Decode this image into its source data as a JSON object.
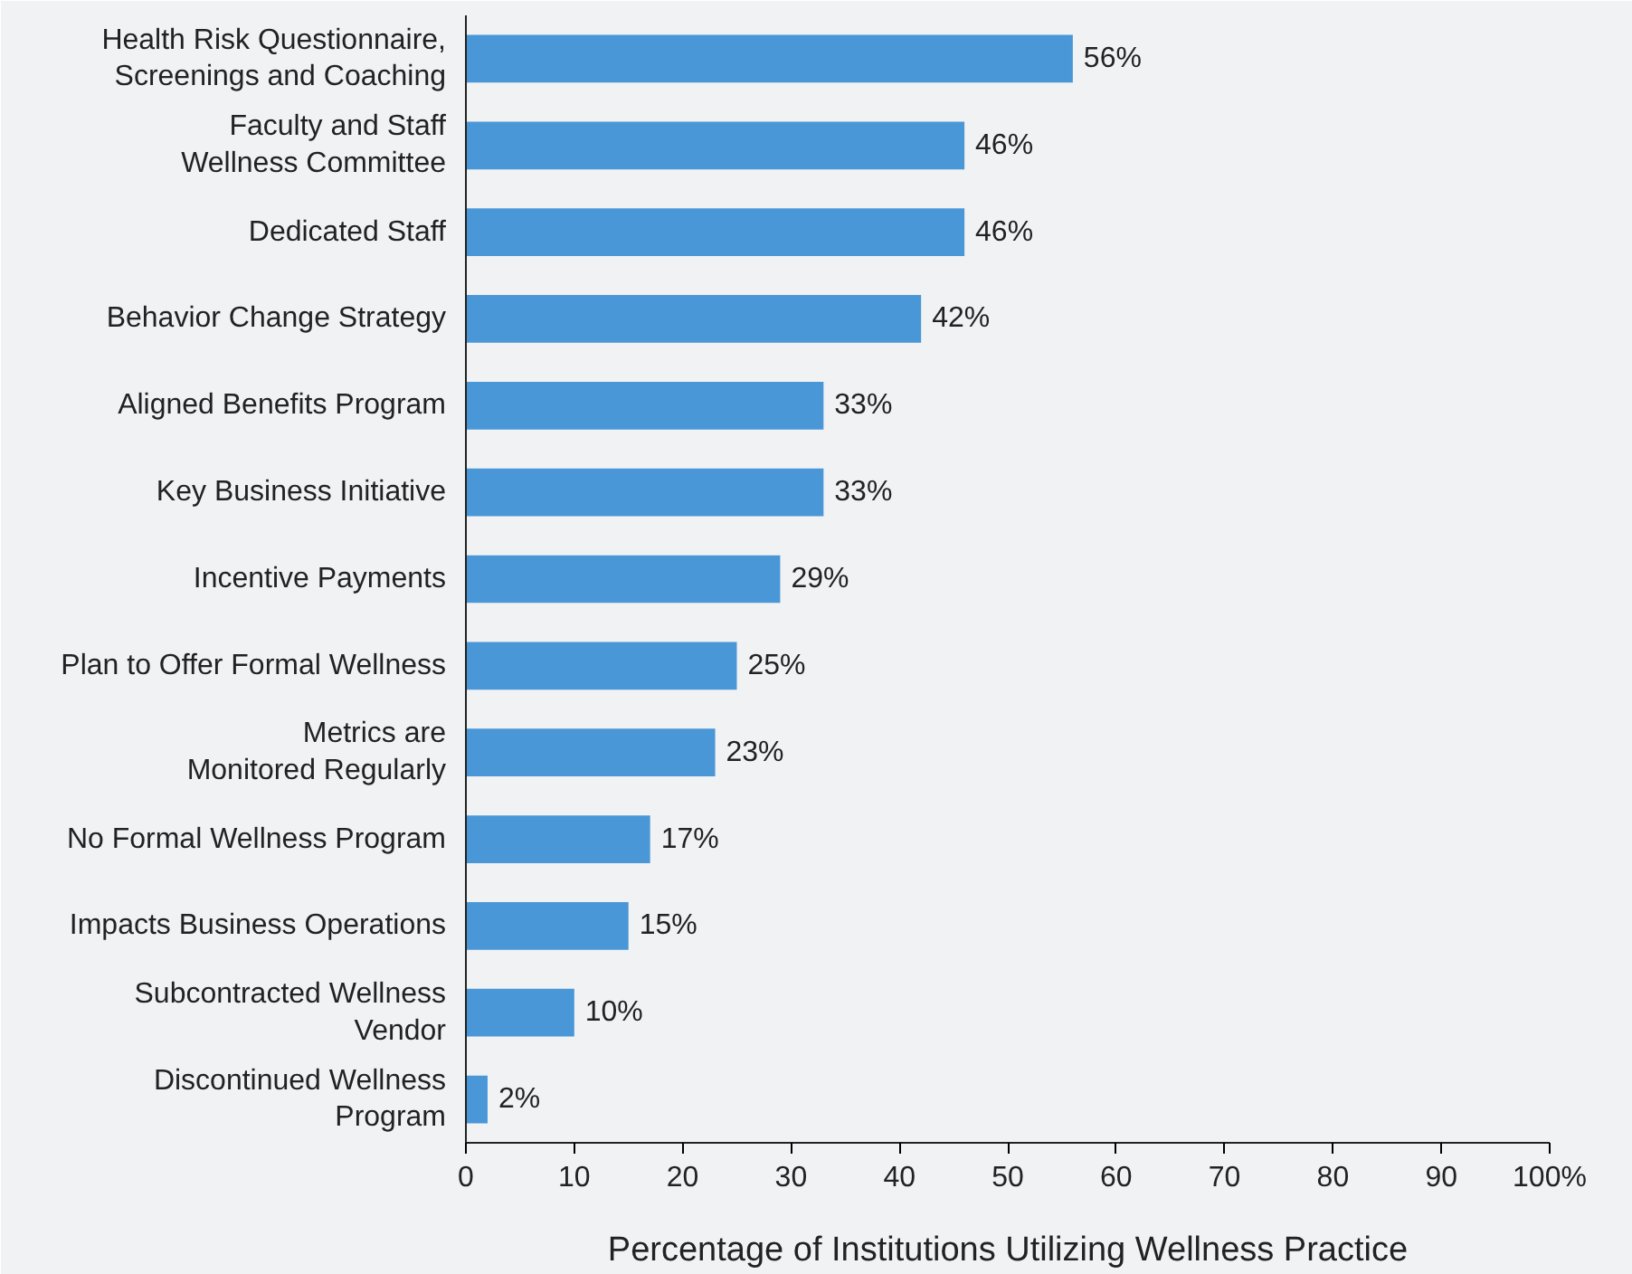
{
  "chart_data": {
    "type": "bar",
    "orientation": "horizontal",
    "xlabel": "Percentage of Institutions Utilizing Wellness Practice",
    "categories": [
      "Health Risk Questionnaire,\nScreenings and Coaching",
      "Faculty and Staff\nWellness Committee",
      "Dedicated Staff",
      "Behavior Change Strategy",
      "Aligned Benefits Program",
      "Key Business Initiative",
      "Incentive Payments",
      "Plan to Offer Formal Wellness",
      "Metrics are\nMonitored Regularly",
      "No Formal Wellness Program",
      "Impacts Business Operations",
      "Subcontracted Wellness\nVendor",
      "Discontinued Wellness\nProgram"
    ],
    "values": [
      56,
      46,
      46,
      42,
      33,
      33,
      29,
      25,
      23,
      17,
      15,
      10,
      2
    ],
    "value_labels": [
      "56%",
      "46%",
      "46%",
      "42%",
      "33%",
      "33%",
      "29%",
      "25%",
      "23%",
      "17%",
      "15%",
      "10%",
      "2%"
    ],
    "color": "#4a97d8",
    "xlim": [
      0,
      100
    ],
    "xticks": [
      0,
      10,
      20,
      30,
      40,
      50,
      60,
      70,
      80,
      90,
      {
        "value": 100,
        "label": "100%"
      }
    ],
    "grid": false
  }
}
